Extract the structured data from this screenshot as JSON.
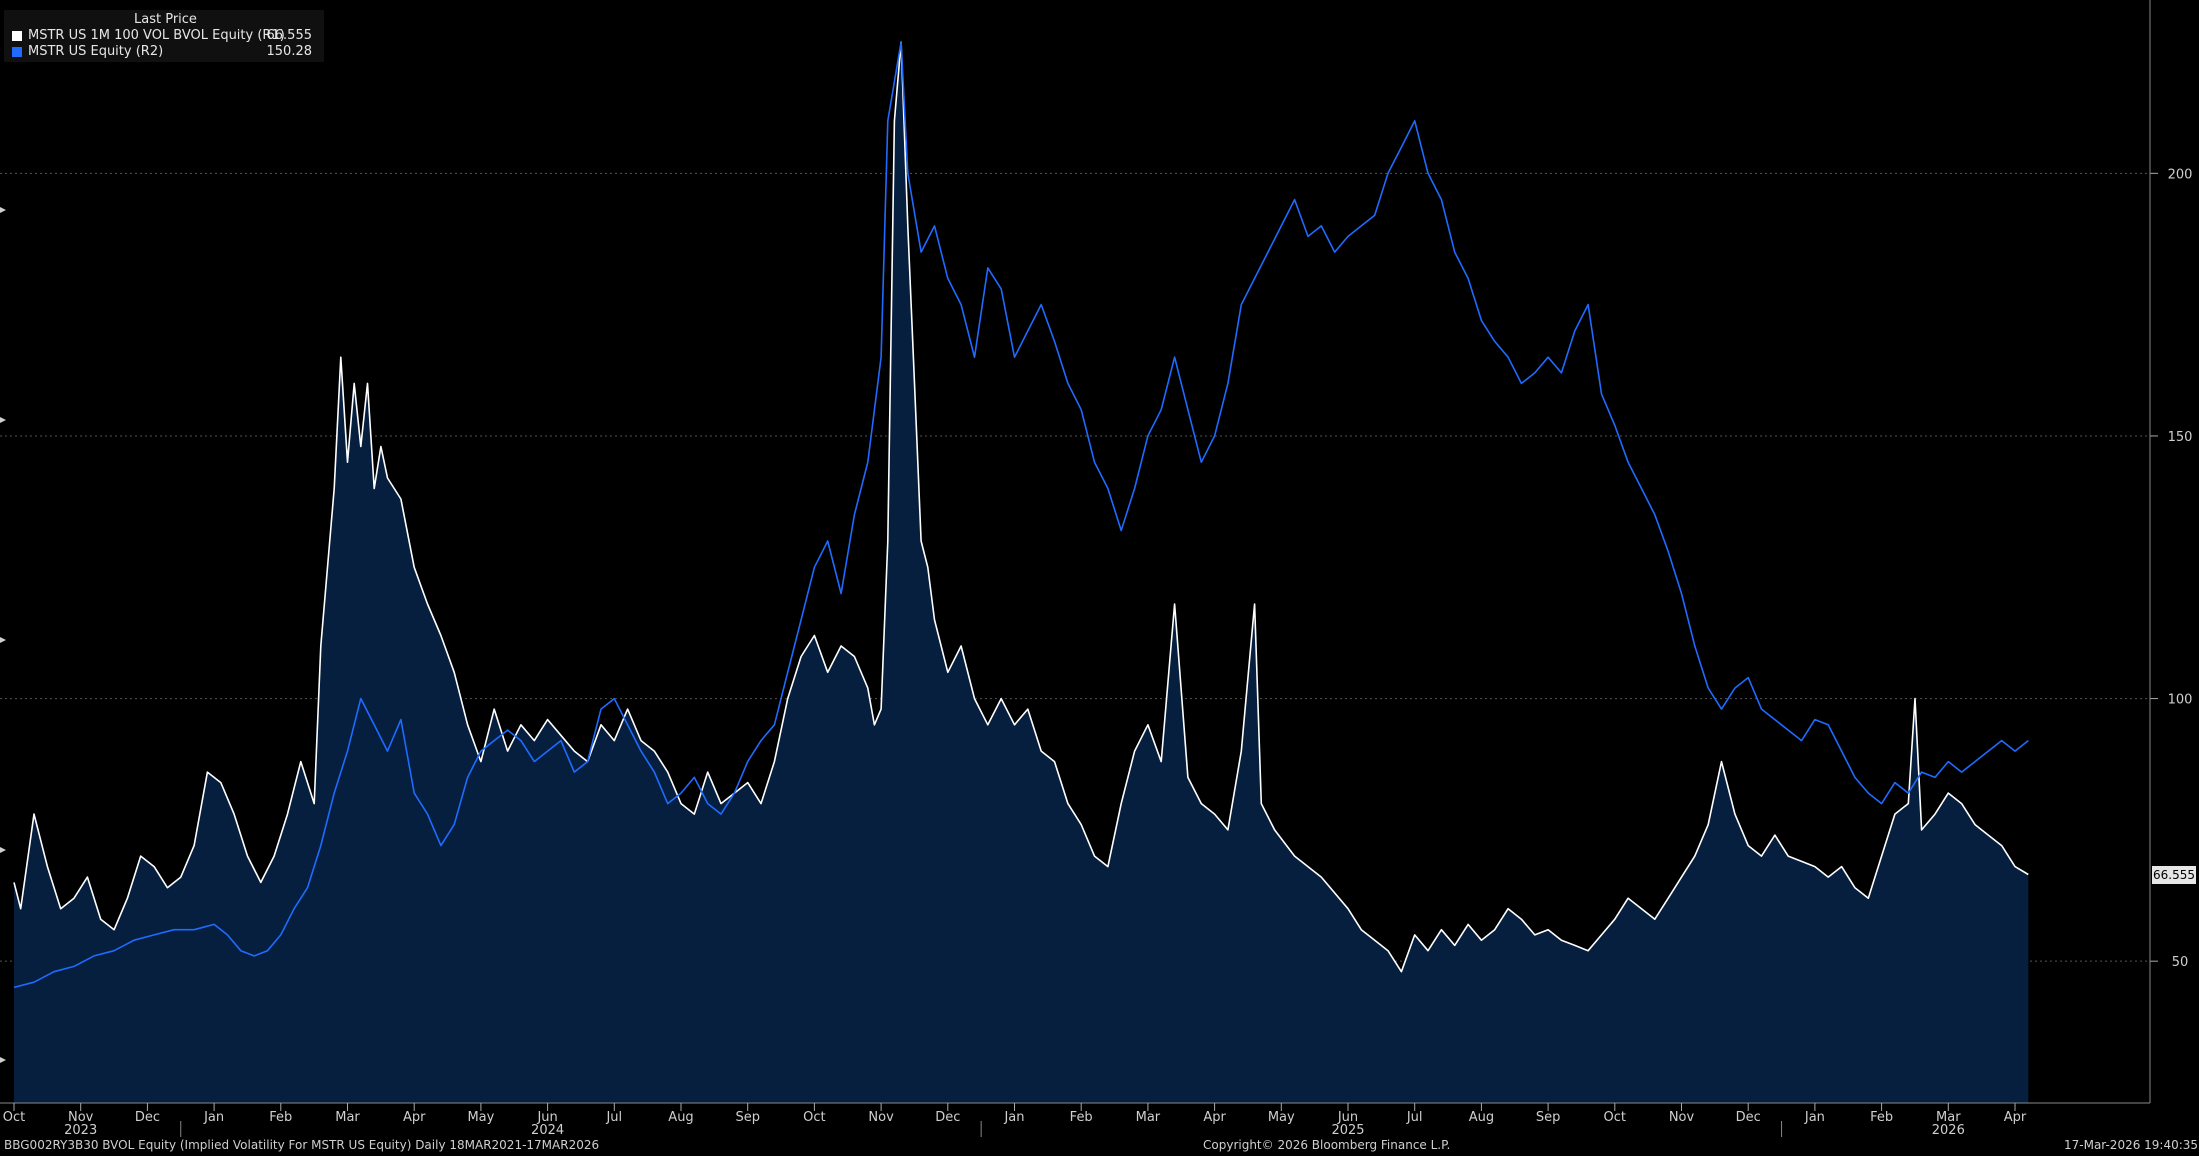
{
  "legend": {
    "header": "Last Price",
    "items": [
      {
        "name": "MSTR US 1M 100 VOL BVOL Equity  (R1)",
        "value": "66.555",
        "color": "#ffffff"
      },
      {
        "name": "MSTR US Equity  (R2)",
        "value": "150.28",
        "color": "#1f6bff"
      }
    ]
  },
  "footer": {
    "left": "BBG002RY3B30 BVOL Equity (Implied Volatility For MSTR US Equity) Daily 18MAR2021-17MAR2026",
    "center": "Copyright© 2026 Bloomberg Finance L.P.",
    "right": "17-Mar-2026 19:40:35"
  },
  "last_value_tag": "66.555",
  "chart_data": {
    "type": "area",
    "x_months": [
      "Oct",
      "Nov",
      "Dec",
      "Jan",
      "Feb",
      "Mar",
      "Apr",
      "May",
      "Jun",
      "Jul",
      "Aug",
      "Sep",
      "Oct",
      "Nov",
      "Dec",
      "Jan",
      "Feb",
      "Mar",
      "Apr",
      "May",
      "Jun",
      "Jul",
      "Aug",
      "Sep",
      "Oct",
      "Nov",
      "Dec",
      "Jan",
      "Feb",
      "Mar",
      "Apr"
    ],
    "x_years": [
      {
        "label": "2023",
        "month_index": 1
      },
      {
        "label": "2024",
        "month_index": 8
      },
      {
        "label": "2025",
        "month_index": 20
      },
      {
        "label": "2026",
        "month_index": 29
      }
    ],
    "y_right": {
      "ticks": [
        50,
        100,
        150,
        200
      ],
      "ylim": [
        23,
        233
      ]
    },
    "grid": true,
    "series": [
      {
        "name": "MSTR US 1M 100 VOL BVOL Equity  (R1)",
        "style": "area",
        "color": "#ffffff",
        "fill": "#061f3f",
        "points": [
          [
            0,
            65
          ],
          [
            0.1,
            60
          ],
          [
            0.3,
            78
          ],
          [
            0.5,
            68
          ],
          [
            0.7,
            60
          ],
          [
            0.9,
            62
          ],
          [
            1.1,
            66
          ],
          [
            1.3,
            58
          ],
          [
            1.5,
            56
          ],
          [
            1.7,
            62
          ],
          [
            1.9,
            70
          ],
          [
            2.1,
            68
          ],
          [
            2.3,
            64
          ],
          [
            2.5,
            66
          ],
          [
            2.7,
            72
          ],
          [
            2.9,
            86
          ],
          [
            3.1,
            84
          ],
          [
            3.3,
            78
          ],
          [
            3.5,
            70
          ],
          [
            3.7,
            65
          ],
          [
            3.9,
            70
          ],
          [
            4.1,
            78
          ],
          [
            4.3,
            88
          ],
          [
            4.5,
            80
          ],
          [
            4.6,
            110
          ],
          [
            4.8,
            140
          ],
          [
            4.9,
            165
          ],
          [
            5.0,
            145
          ],
          [
            5.1,
            160
          ],
          [
            5.2,
            148
          ],
          [
            5.3,
            160
          ],
          [
            5.4,
            140
          ],
          [
            5.5,
            148
          ],
          [
            5.6,
            142
          ],
          [
            5.8,
            138
          ],
          [
            6.0,
            125
          ],
          [
            6.2,
            118
          ],
          [
            6.4,
            112
          ],
          [
            6.6,
            105
          ],
          [
            6.8,
            95
          ],
          [
            7.0,
            88
          ],
          [
            7.2,
            98
          ],
          [
            7.4,
            90
          ],
          [
            7.6,
            95
          ],
          [
            7.8,
            92
          ],
          [
            8.0,
            96
          ],
          [
            8.2,
            93
          ],
          [
            8.4,
            90
          ],
          [
            8.6,
            88
          ],
          [
            8.8,
            95
          ],
          [
            9.0,
            92
          ],
          [
            9.2,
            98
          ],
          [
            9.4,
            92
          ],
          [
            9.6,
            90
          ],
          [
            9.8,
            86
          ],
          [
            10.0,
            80
          ],
          [
            10.2,
            78
          ],
          [
            10.4,
            86
          ],
          [
            10.6,
            80
          ],
          [
            10.8,
            82
          ],
          [
            11.0,
            84
          ],
          [
            11.2,
            80
          ],
          [
            11.4,
            88
          ],
          [
            11.6,
            100
          ],
          [
            11.8,
            108
          ],
          [
            12.0,
            112
          ],
          [
            12.2,
            105
          ],
          [
            12.4,
            110
          ],
          [
            12.6,
            108
          ],
          [
            12.8,
            102
          ],
          [
            12.9,
            95
          ],
          [
            13.0,
            98
          ],
          [
            13.1,
            130
          ],
          [
            13.2,
            210
          ],
          [
            13.3,
            225
          ],
          [
            13.4,
            190
          ],
          [
            13.5,
            160
          ],
          [
            13.6,
            130
          ],
          [
            13.7,
            125
          ],
          [
            13.8,
            115
          ],
          [
            14.0,
            105
          ],
          [
            14.2,
            110
          ],
          [
            14.4,
            100
          ],
          [
            14.6,
            95
          ],
          [
            14.8,
            100
          ],
          [
            15.0,
            95
          ],
          [
            15.2,
            98
          ],
          [
            15.4,
            90
          ],
          [
            15.6,
            88
          ],
          [
            15.8,
            80
          ],
          [
            16.0,
            76
          ],
          [
            16.2,
            70
          ],
          [
            16.4,
            68
          ],
          [
            16.6,
            80
          ],
          [
            16.8,
            90
          ],
          [
            17.0,
            95
          ],
          [
            17.2,
            88
          ],
          [
            17.4,
            118
          ],
          [
            17.6,
            85
          ],
          [
            17.8,
            80
          ],
          [
            18.0,
            78
          ],
          [
            18.2,
            75
          ],
          [
            18.4,
            90
          ],
          [
            18.6,
            118
          ],
          [
            18.7,
            80
          ],
          [
            18.9,
            75
          ],
          [
            19.2,
            70
          ],
          [
            19.6,
            66
          ],
          [
            20.0,
            60
          ],
          [
            20.2,
            56
          ],
          [
            20.4,
            54
          ],
          [
            20.6,
            52
          ],
          [
            20.8,
            48
          ],
          [
            21.0,
            55
          ],
          [
            21.2,
            52
          ],
          [
            21.4,
            56
          ],
          [
            21.6,
            53
          ],
          [
            21.8,
            57
          ],
          [
            22.0,
            54
          ],
          [
            22.2,
            56
          ],
          [
            22.4,
            60
          ],
          [
            22.6,
            58
          ],
          [
            22.8,
            55
          ],
          [
            23.0,
            56
          ],
          [
            23.2,
            54
          ],
          [
            23.4,
            53
          ],
          [
            23.6,
            52
          ],
          [
            23.8,
            55
          ],
          [
            24.0,
            58
          ],
          [
            24.2,
            62
          ],
          [
            24.4,
            60
          ],
          [
            24.6,
            58
          ],
          [
            24.8,
            62
          ],
          [
            25.0,
            66
          ],
          [
            25.2,
            70
          ],
          [
            25.4,
            76
          ],
          [
            25.6,
            88
          ],
          [
            25.8,
            78
          ],
          [
            26.0,
            72
          ],
          [
            26.2,
            70
          ],
          [
            26.4,
            74
          ],
          [
            26.6,
            70
          ],
          [
            26.8,
            69
          ],
          [
            27.0,
            68
          ],
          [
            27.2,
            66
          ],
          [
            27.4,
            68
          ],
          [
            27.6,
            64
          ],
          [
            27.8,
            62
          ],
          [
            28.0,
            70
          ],
          [
            28.2,
            78
          ],
          [
            28.4,
            80
          ],
          [
            28.5,
            100
          ],
          [
            28.6,
            75
          ],
          [
            28.8,
            78
          ],
          [
            29.0,
            82
          ],
          [
            29.2,
            80
          ],
          [
            29.4,
            76
          ],
          [
            29.6,
            74
          ],
          [
            29.8,
            72
          ],
          [
            30.0,
            68
          ],
          [
            30.2,
            66.5
          ]
        ]
      },
      {
        "name": "MSTR US Equity  (R2)",
        "style": "line",
        "color": "#1f6bff",
        "points": [
          [
            0,
            45
          ],
          [
            0.3,
            46
          ],
          [
            0.6,
            48
          ],
          [
            0.9,
            49
          ],
          [
            1.2,
            51
          ],
          [
            1.5,
            52
          ],
          [
            1.8,
            54
          ],
          [
            2.1,
            55
          ],
          [
            2.4,
            56
          ],
          [
            2.7,
            56
          ],
          [
            3.0,
            57
          ],
          [
            3.2,
            55
          ],
          [
            3.4,
            52
          ],
          [
            3.6,
            51
          ],
          [
            3.8,
            52
          ],
          [
            4.0,
            55
          ],
          [
            4.2,
            60
          ],
          [
            4.4,
            64
          ],
          [
            4.6,
            72
          ],
          [
            4.8,
            82
          ],
          [
            5.0,
            90
          ],
          [
            5.2,
            100
          ],
          [
            5.4,
            95
          ],
          [
            5.6,
            90
          ],
          [
            5.8,
            96
          ],
          [
            6.0,
            82
          ],
          [
            6.2,
            78
          ],
          [
            6.4,
            72
          ],
          [
            6.6,
            76
          ],
          [
            6.8,
            85
          ],
          [
            7.0,
            90
          ],
          [
            7.2,
            92
          ],
          [
            7.4,
            94
          ],
          [
            7.6,
            92
          ],
          [
            7.8,
            88
          ],
          [
            8.0,
            90
          ],
          [
            8.2,
            92
          ],
          [
            8.4,
            86
          ],
          [
            8.6,
            88
          ],
          [
            8.8,
            98
          ],
          [
            9.0,
            100
          ],
          [
            9.2,
            95
          ],
          [
            9.4,
            90
          ],
          [
            9.6,
            86
          ],
          [
            9.8,
            80
          ],
          [
            10.0,
            82
          ],
          [
            10.2,
            85
          ],
          [
            10.4,
            80
          ],
          [
            10.6,
            78
          ],
          [
            10.8,
            82
          ],
          [
            11.0,
            88
          ],
          [
            11.2,
            92
          ],
          [
            11.4,
            95
          ],
          [
            11.6,
            105
          ],
          [
            11.8,
            115
          ],
          [
            12.0,
            125
          ],
          [
            12.2,
            130
          ],
          [
            12.4,
            120
          ],
          [
            12.6,
            135
          ],
          [
            12.8,
            145
          ],
          [
            13.0,
            165
          ],
          [
            13.1,
            210
          ],
          [
            13.3,
            225
          ],
          [
            13.4,
            200
          ],
          [
            13.6,
            185
          ],
          [
            13.8,
            190
          ],
          [
            14.0,
            180
          ],
          [
            14.2,
            175
          ],
          [
            14.4,
            165
          ],
          [
            14.6,
            182
          ],
          [
            14.8,
            178
          ],
          [
            15.0,
            165
          ],
          [
            15.2,
            170
          ],
          [
            15.4,
            175
          ],
          [
            15.6,
            168
          ],
          [
            15.8,
            160
          ],
          [
            16.0,
            155
          ],
          [
            16.2,
            145
          ],
          [
            16.4,
            140
          ],
          [
            16.6,
            132
          ],
          [
            16.8,
            140
          ],
          [
            17.0,
            150
          ],
          [
            17.2,
            155
          ],
          [
            17.4,
            165
          ],
          [
            17.6,
            155
          ],
          [
            17.8,
            145
          ],
          [
            18.0,
            150
          ],
          [
            18.2,
            160
          ],
          [
            18.4,
            175
          ],
          [
            18.6,
            180
          ],
          [
            18.8,
            185
          ],
          [
            19.0,
            190
          ],
          [
            19.2,
            195
          ],
          [
            19.4,
            188
          ],
          [
            19.6,
            190
          ],
          [
            19.8,
            185
          ],
          [
            20.0,
            188
          ],
          [
            20.2,
            190
          ],
          [
            20.4,
            192
          ],
          [
            20.6,
            200
          ],
          [
            20.8,
            205
          ],
          [
            21.0,
            210
          ],
          [
            21.2,
            200
          ],
          [
            21.4,
            195
          ],
          [
            21.6,
            185
          ],
          [
            21.8,
            180
          ],
          [
            22.0,
            172
          ],
          [
            22.2,
            168
          ],
          [
            22.4,
            165
          ],
          [
            22.6,
            160
          ],
          [
            22.8,
            162
          ],
          [
            23.0,
            165
          ],
          [
            23.2,
            162
          ],
          [
            23.4,
            170
          ],
          [
            23.6,
            175
          ],
          [
            23.8,
            158
          ],
          [
            24.0,
            152
          ],
          [
            24.2,
            145
          ],
          [
            24.4,
            140
          ],
          [
            24.6,
            135
          ],
          [
            24.8,
            128
          ],
          [
            25.0,
            120
          ],
          [
            25.2,
            110
          ],
          [
            25.4,
            102
          ],
          [
            25.6,
            98
          ],
          [
            25.8,
            102
          ],
          [
            26.0,
            104
          ],
          [
            26.2,
            98
          ],
          [
            26.4,
            96
          ],
          [
            26.6,
            94
          ],
          [
            26.8,
            92
          ],
          [
            27.0,
            96
          ],
          [
            27.2,
            95
          ],
          [
            27.4,
            90
          ],
          [
            27.6,
            85
          ],
          [
            27.8,
            82
          ],
          [
            28.0,
            80
          ],
          [
            28.2,
            84
          ],
          [
            28.4,
            82
          ],
          [
            28.6,
            86
          ],
          [
            28.8,
            85
          ],
          [
            29.0,
            88
          ],
          [
            29.2,
            86
          ],
          [
            29.4,
            88
          ],
          [
            29.6,
            90
          ],
          [
            29.8,
            92
          ],
          [
            30.0,
            90
          ],
          [
            30.2,
            92
          ]
        ]
      }
    ]
  }
}
